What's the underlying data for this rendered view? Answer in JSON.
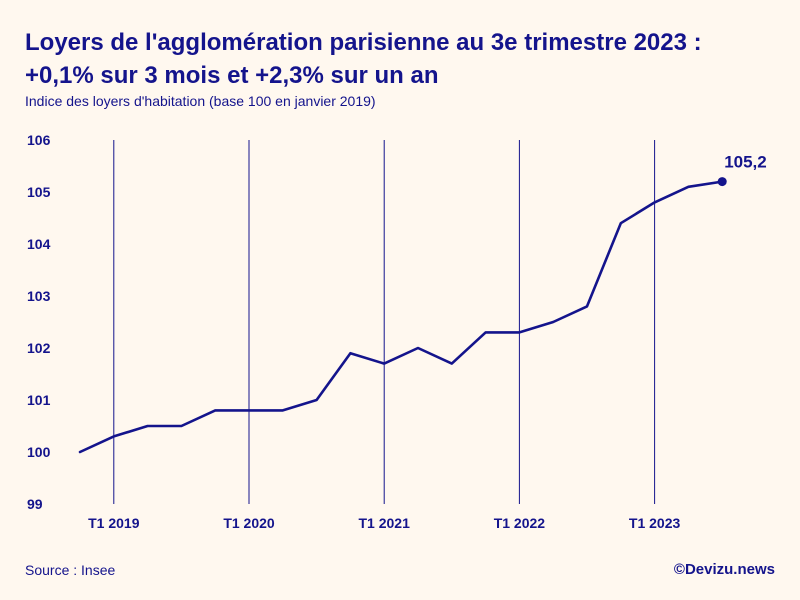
{
  "header": {
    "title_line1": "Loyers de l'agglomération parisienne au 3e trimestre 2023 :",
    "title_line2": "+0,1% sur 3 mois et +2,3% sur un an",
    "subtitle": "Indice des loyers d'habitation (base 100 en janvier 2019)"
  },
  "footer": {
    "source": "Source : Insee",
    "credit": "©Devizu.news"
  },
  "colors": {
    "background": "#FFF8EF",
    "accent": "#14148C"
  },
  "chart_data": {
    "type": "line",
    "title": "Loyers de l'agglomération parisienne au 3e trimestre 2023 : +0,1% sur 3 mois et +2,3% sur un an",
    "subtitle": "Indice des loyers d'habitation (base 100 en janvier 2019)",
    "xlabel": "",
    "ylabel": "",
    "x": [
      "T4 2018",
      "T1 2019",
      "T2 2019",
      "T3 2019",
      "T4 2019",
      "T1 2020",
      "T2 2020",
      "T3 2020",
      "T4 2020",
      "T1 2021",
      "T2 2021",
      "T3 2021",
      "T4 2021",
      "T1 2022",
      "T2 2022",
      "T3 2022",
      "T4 2022",
      "T1 2023",
      "T2 2023",
      "T3 2023"
    ],
    "series": [
      {
        "values": [
          100.0,
          100.3,
          100.5,
          100.5,
          100.8,
          100.8,
          100.8,
          101.0,
          101.9,
          101.7,
          102.0,
          101.7,
          102.3,
          102.3,
          102.5,
          102.8,
          104.4,
          104.8,
          105.1,
          105.2
        ]
      }
    ],
    "ylim": [
      99,
      106
    ],
    "yticks": [
      "99",
      "100",
      "101",
      "102",
      "103",
      "104",
      "105",
      "106"
    ],
    "xticks": [
      "T1 2019",
      "T1 2020",
      "T1 2021",
      "T1 2022",
      "T1 2023"
    ],
    "vertical_gridlines_at": [
      "T1 2019",
      "T1 2020",
      "T1 2021",
      "T1 2022",
      "T1 2023"
    ],
    "grid": "vertical",
    "legend": "none",
    "end_label": "105,2"
  }
}
